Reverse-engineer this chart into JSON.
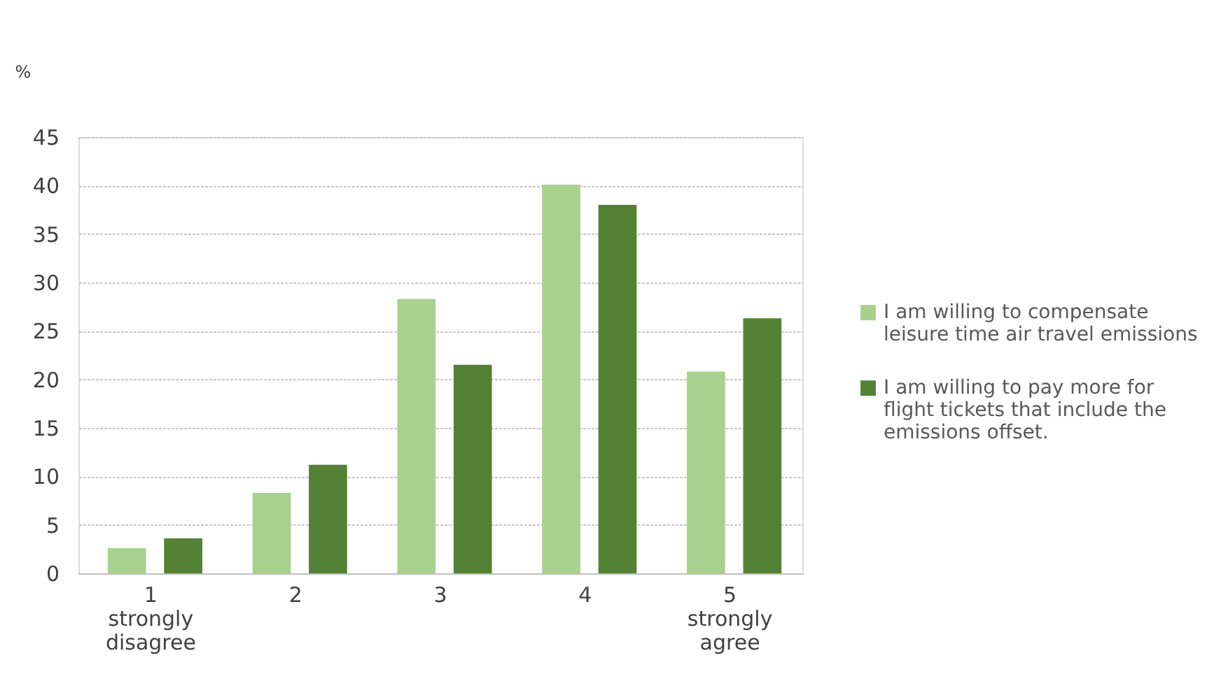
{
  "chart_data": {
    "type": "bar",
    "ylabel": "%",
    "categories": [
      "1 strongly disagree",
      "2",
      "3",
      "4",
      "5 strongly agree"
    ],
    "series": [
      {
        "name": "I am willing to compensate leisure time air travel emissions",
        "color": "#a9d18e",
        "values": [
          2.6,
          8.3,
          28.3,
          40.1,
          20.8
        ]
      },
      {
        "name": "I am willing to pay more for flight tickets that include the emissions offset.",
        "color": "#548235",
        "values": [
          3.6,
          11.2,
          21.5,
          38.0,
          26.3
        ]
      }
    ],
    "ylim": [
      0,
      45
    ],
    "yticks": [
      0,
      5,
      10,
      15,
      20,
      25,
      30,
      35,
      40,
      45
    ],
    "grid": "y",
    "legend": "right"
  }
}
